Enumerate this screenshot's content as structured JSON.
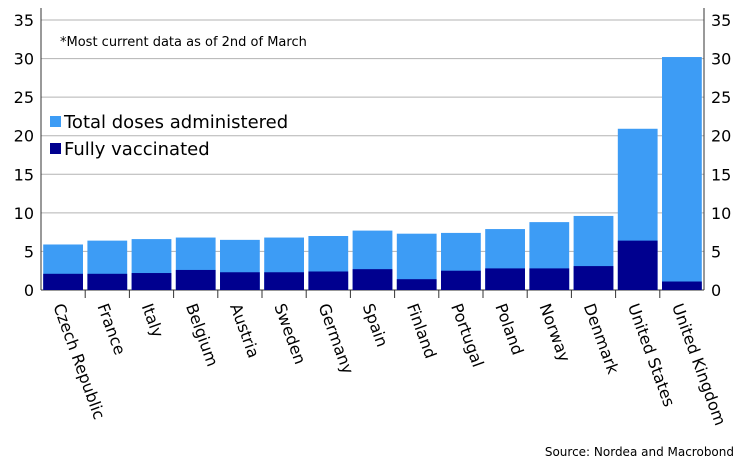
{
  "chart_data": {
    "type": "bar",
    "stacked": true,
    "categories": [
      "Czech Republic",
      "France",
      "Italy",
      "Belgium",
      "Austria",
      "Sweden",
      "Germany",
      "Spain",
      "Finland",
      "Portugal",
      "Poland",
      "Norway",
      "Denmark",
      "United States",
      "United Kingdom"
    ],
    "series": [
      {
        "name": "Fully vaccinated",
        "color": "#00008f",
        "values": [
          2.1,
          2.1,
          2.2,
          2.6,
          2.3,
          2.3,
          2.4,
          2.7,
          1.4,
          2.5,
          2.8,
          2.8,
          3.1,
          6.4,
          1.1
        ]
      },
      {
        "name": "Total doses administered",
        "color": "#3d9cf5",
        "values": [
          5.9,
          6.4,
          6.6,
          6.8,
          6.5,
          6.8,
          7.0,
          7.7,
          7.3,
          7.4,
          7.9,
          8.8,
          9.6,
          20.9,
          30.2
        ]
      }
    ],
    "ylim": [
      0,
      35
    ],
    "yticks": [
      "0",
      "5",
      "10",
      "15",
      "20",
      "25",
      "30",
      "35"
    ],
    "grid": true,
    "legend_position": "left",
    "annotation": "*Most current data as of 2nd of March",
    "source": "Source: Nordea and Macrobond"
  }
}
